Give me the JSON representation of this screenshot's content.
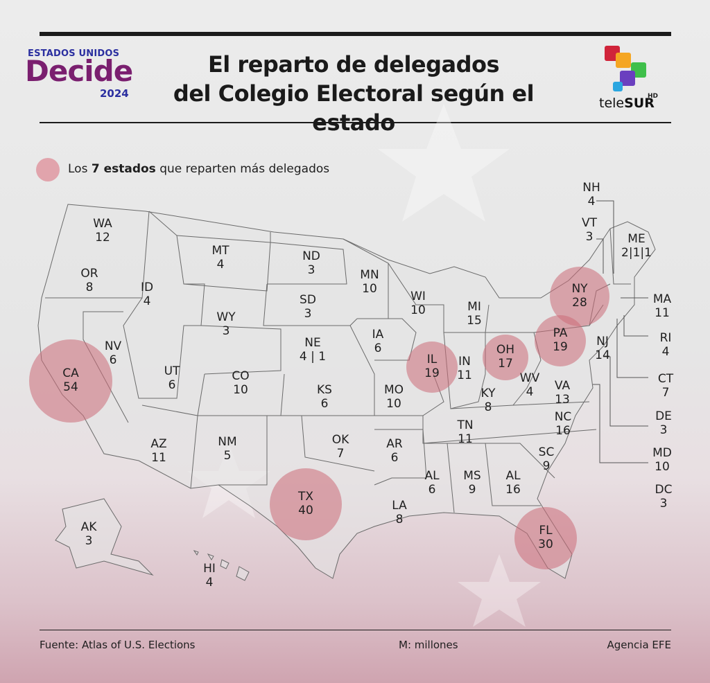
{
  "header": {
    "title_line1": "El reparto de delegados",
    "title_line2": "del Colegio Electoral  según el estado"
  },
  "logo_left": {
    "top": "ESTADOS UNIDOS",
    "main": "Decide",
    "year": "2024"
  },
  "logo_right": {
    "brand_pre": "tele",
    "brand_bold": "SUR",
    "hd": "HD"
  },
  "legend": {
    "pre": "Los ",
    "bold": "7 estados",
    "post": " que reparten más delegados"
  },
  "colors": {
    "bubble": "#cc6b78",
    "title": "#1a1a1a",
    "rule": "#1b1b1b"
  },
  "states": [
    {
      "code": "WA",
      "value": "12"
    },
    {
      "code": "OR",
      "value": "8"
    },
    {
      "code": "ID",
      "value": "4"
    },
    {
      "code": "MT",
      "value": "4"
    },
    {
      "code": "ND",
      "value": "3"
    },
    {
      "code": "MN",
      "value": "10"
    },
    {
      "code": "WI",
      "value": "10"
    },
    {
      "code": "MI",
      "value": "15"
    },
    {
      "code": "SD",
      "value": "3"
    },
    {
      "code": "WY",
      "value": "3"
    },
    {
      "code": "NE",
      "value": "4 | 1"
    },
    {
      "code": "IA",
      "value": "6"
    },
    {
      "code": "NV",
      "value": "6"
    },
    {
      "code": "UT",
      "value": "6"
    },
    {
      "code": "CO",
      "value": "10"
    },
    {
      "code": "KS",
      "value": "6"
    },
    {
      "code": "MO",
      "value": "10"
    },
    {
      "code": "IN",
      "value": "11"
    },
    {
      "code": "KY",
      "value": "8"
    },
    {
      "code": "WV",
      "value": "4"
    },
    {
      "code": "VA",
      "value": "13"
    },
    {
      "code": "AZ",
      "value": "11"
    },
    {
      "code": "NM",
      "value": "5"
    },
    {
      "code": "OK",
      "value": "7"
    },
    {
      "code": "AR",
      "value": "6"
    },
    {
      "code": "TN",
      "value": "11"
    },
    {
      "code": "NC",
      "value": "16"
    },
    {
      "code": "SC",
      "value": "9"
    },
    {
      "code": "AL",
      "value": "6"
    },
    {
      "code": "MS",
      "value": "9"
    },
    {
      "code": "AL",
      "value": "16"
    },
    {
      "code": "LA",
      "value": "8"
    },
    {
      "code": "AK",
      "value": "3"
    },
    {
      "code": "HI",
      "value": "4"
    },
    {
      "code": "NJ",
      "value": "14"
    },
    {
      "code": "NH",
      "value": "4"
    },
    {
      "code": "VT",
      "value": "3"
    },
    {
      "code": "ME",
      "value": "2|1|1"
    },
    {
      "code": "MA",
      "value": "11"
    },
    {
      "code": "RI",
      "value": "4"
    },
    {
      "code": "CT",
      "value": "7"
    },
    {
      "code": "DE",
      "value": "3"
    },
    {
      "code": "MD",
      "value": "10"
    },
    {
      "code": "DC",
      "value": "3"
    }
  ],
  "highlighted": [
    {
      "code": "CA",
      "value": "54"
    },
    {
      "code": "TX",
      "value": "40"
    },
    {
      "code": "FL",
      "value": "30"
    },
    {
      "code": "NY",
      "value": "28"
    },
    {
      "code": "IL",
      "value": "19"
    },
    {
      "code": "PA",
      "value": "19"
    },
    {
      "code": "OH",
      "value": "17"
    }
  ],
  "footer": {
    "source": "Fuente: Atlas of U.S. Elections",
    "units": "M: millones",
    "agency": "Agencia EFE"
  }
}
